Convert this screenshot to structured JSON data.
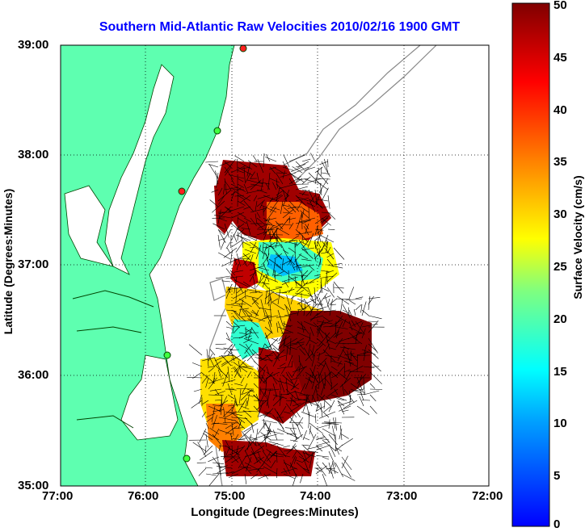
{
  "title": "Southern Mid-Atlantic Raw Velocities 2010/02/16 1900 GMT",
  "xlabel": "Longitude (Degrees:Minutes)",
  "ylabel": "Latitude (Degrees:Minutes)",
  "colorbar": {
    "label": "Surface Velocity (cm/s)",
    "ticks": [
      "50",
      "45",
      "40",
      "35",
      "30",
      "25",
      "20",
      "15",
      "10",
      "5",
      "0"
    ],
    "colors": [
      "#0000ff",
      "#00a0ff",
      "#00ffff",
      "#7fff7f",
      "#ffff00",
      "#ff8000",
      "#ff0000",
      "#800000"
    ]
  },
  "xticks": [
    "77:00",
    "76:00",
    "75:00",
    "74:00",
    "73:00",
    "72:00"
  ],
  "yticks": [
    "39:00",
    "38:00",
    "37:00",
    "36:00",
    "35:00"
  ],
  "land_color": "#5effb0"
}
